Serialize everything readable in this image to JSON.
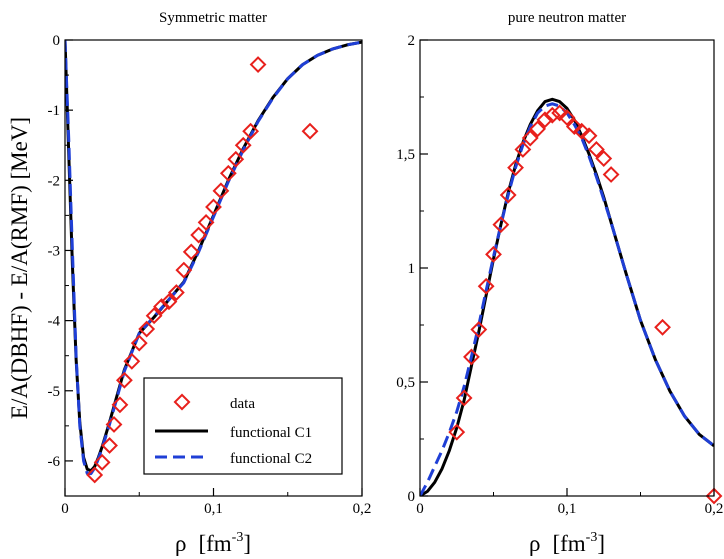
{
  "ylabel": "E/A(DBHF) - E/A(RMF)   [MeV]",
  "chart_data": [
    {
      "type": "line",
      "title": "Symmetric matter",
      "xlabel_symbol": "ρ",
      "xlabel_unit": "[fm",
      "xlabel_exp": "-3",
      "xlabel_close": "]",
      "xlim": [
        0,
        0.2
      ],
      "ylim": [
        -6.5,
        0
      ],
      "xticks": [
        {
          "value": 0,
          "label": "0"
        },
        {
          "value": 0.1,
          "label": "0,1"
        },
        {
          "value": 0.2,
          "label": "0,2"
        }
      ],
      "yticks": [
        {
          "value": 0,
          "label": "0"
        },
        {
          "value": -1,
          "label": "-1"
        },
        {
          "value": -2,
          "label": "-2"
        },
        {
          "value": -3,
          "label": "-3"
        },
        {
          "value": -4,
          "label": "-4"
        },
        {
          "value": -5,
          "label": "-5"
        },
        {
          "value": -6,
          "label": "-6"
        }
      ],
      "data_points": {
        "name": "data",
        "x": [
          0.02,
          0.025,
          0.03,
          0.033,
          0.037,
          0.04,
          0.045,
          0.05,
          0.055,
          0.06,
          0.065,
          0.07,
          0.075,
          0.08,
          0.085,
          0.09,
          0.095,
          0.1,
          0.105,
          0.11,
          0.115,
          0.12,
          0.125,
          0.13,
          0.165
        ],
        "y": [
          -6.2,
          -6.02,
          -5.78,
          -5.48,
          -5.2,
          -4.85,
          -4.58,
          -4.32,
          -4.12,
          -3.93,
          -3.8,
          -3.73,
          -3.6,
          -3.28,
          -3.02,
          -2.78,
          -2.6,
          -2.38,
          -2.15,
          -1.9,
          -1.7,
          -1.5,
          -1.3,
          -0.35,
          -1.3
        ]
      },
      "series": [
        {
          "name": "functional C1",
          "color": "#000000",
          "dash": "solid",
          "x": [
            0,
            0.0025,
            0.005,
            0.0075,
            0.01,
            0.0125,
            0.015,
            0.0175,
            0.02,
            0.0225,
            0.025,
            0.03,
            0.035,
            0.04,
            0.05,
            0.06,
            0.07,
            0.08,
            0.09,
            0.1,
            0.11,
            0.12,
            0.13,
            0.14,
            0.15,
            0.16,
            0.17,
            0.18,
            0.19,
            0.2
          ],
          "y": [
            0,
            -1.6,
            -3.2,
            -4.55,
            -5.45,
            -5.95,
            -6.12,
            -6.14,
            -6.08,
            -5.95,
            -5.8,
            -5.45,
            -5.07,
            -4.7,
            -4.18,
            -3.95,
            -3.7,
            -3.45,
            -3.0,
            -2.5,
            -2.0,
            -1.55,
            -1.15,
            -0.82,
            -0.55,
            -0.35,
            -0.22,
            -0.13,
            -0.07,
            -0.03
          ]
        },
        {
          "name": "functional C2",
          "color": "#1f3fd6",
          "dash": "dashed",
          "x": [
            0,
            0.0025,
            0.005,
            0.0075,
            0.01,
            0.0125,
            0.015,
            0.0175,
            0.02,
            0.0225,
            0.025,
            0.03,
            0.035,
            0.04,
            0.05,
            0.06,
            0.07,
            0.08,
            0.09,
            0.1,
            0.11,
            0.12,
            0.13,
            0.14,
            0.15,
            0.16,
            0.17,
            0.18,
            0.19,
            0.2
          ],
          "y": [
            0,
            -1.4,
            -3.0,
            -4.5,
            -5.5,
            -6.0,
            -6.18,
            -6.18,
            -6.1,
            -5.97,
            -5.82,
            -5.48,
            -5.1,
            -4.72,
            -4.18,
            -3.94,
            -3.7,
            -3.46,
            -3.02,
            -2.52,
            -2.02,
            -1.57,
            -1.16,
            -0.83,
            -0.55,
            -0.35,
            -0.22,
            -0.13,
            -0.07,
            -0.03
          ]
        }
      ],
      "legend": {
        "placement": "bottom-right",
        "entries": [
          "data",
          "functional C1",
          "functional C2"
        ]
      }
    },
    {
      "type": "line",
      "title": "pure neutron matter",
      "xlabel_symbol": "ρ",
      "xlabel_unit": "[fm",
      "xlabel_exp": "-3",
      "xlabel_close": "]",
      "xlim": [
        0,
        0.2
      ],
      "ylim": [
        0,
        2
      ],
      "xticks": [
        {
          "value": 0,
          "label": "0"
        },
        {
          "value": 0.1,
          "label": "0,1"
        },
        {
          "value": 0.2,
          "label": "0,2"
        }
      ],
      "yticks": [
        {
          "value": 0,
          "label": "0"
        },
        {
          "value": 0.5,
          "label": "0,5"
        },
        {
          "value": 1,
          "label": "1"
        },
        {
          "value": 1.5,
          "label": "1,5"
        },
        {
          "value": 2,
          "label": "2"
        }
      ],
      "data_points": {
        "name": "data",
        "x": [
          0.025,
          0.03,
          0.035,
          0.04,
          0.045,
          0.05,
          0.055,
          0.06,
          0.065,
          0.07,
          0.075,
          0.08,
          0.085,
          0.09,
          0.095,
          0.1,
          0.105,
          0.11,
          0.115,
          0.12,
          0.125,
          0.13,
          0.165,
          0.2
        ],
        "y": [
          0.28,
          0.43,
          0.61,
          0.73,
          0.92,
          1.06,
          1.19,
          1.32,
          1.44,
          1.52,
          1.57,
          1.61,
          1.65,
          1.67,
          1.68,
          1.66,
          1.62,
          1.6,
          1.58,
          1.52,
          1.48,
          1.41,
          0.74,
          0.0
        ]
      },
      "series": [
        {
          "name": "functional C1",
          "color": "#000000",
          "dash": "solid",
          "x": [
            0,
            0.005,
            0.01,
            0.015,
            0.02,
            0.025,
            0.03,
            0.035,
            0.04,
            0.045,
            0.05,
            0.055,
            0.06,
            0.065,
            0.07,
            0.075,
            0.08,
            0.085,
            0.09,
            0.095,
            0.1,
            0.105,
            0.11,
            0.115,
            0.12,
            0.125,
            0.13,
            0.14,
            0.15,
            0.16,
            0.17,
            0.18,
            0.19,
            0.2
          ],
          "y": [
            0,
            0.02,
            0.06,
            0.12,
            0.2,
            0.3,
            0.42,
            0.57,
            0.72,
            0.88,
            1.04,
            1.19,
            1.33,
            1.45,
            1.55,
            1.63,
            1.69,
            1.73,
            1.74,
            1.73,
            1.7,
            1.65,
            1.58,
            1.5,
            1.41,
            1.31,
            1.2,
            0.98,
            0.77,
            0.6,
            0.46,
            0.35,
            0.27,
            0.22
          ]
        },
        {
          "name": "functional C2",
          "color": "#1f3fd6",
          "dash": "dashed",
          "x": [
            0,
            0.005,
            0.01,
            0.015,
            0.02,
            0.025,
            0.03,
            0.035,
            0.04,
            0.045,
            0.05,
            0.055,
            0.06,
            0.065,
            0.07,
            0.075,
            0.08,
            0.085,
            0.09,
            0.095,
            0.1,
            0.105,
            0.11,
            0.115,
            0.12,
            0.125,
            0.13,
            0.14,
            0.15,
            0.16,
            0.17,
            0.18,
            0.19,
            0.2
          ],
          "y": [
            0,
            0.06,
            0.13,
            0.2,
            0.28,
            0.37,
            0.48,
            0.61,
            0.75,
            0.9,
            1.05,
            1.19,
            1.32,
            1.44,
            1.54,
            1.62,
            1.68,
            1.71,
            1.72,
            1.71,
            1.68,
            1.63,
            1.57,
            1.49,
            1.4,
            1.3,
            1.2,
            0.98,
            0.77,
            0.6,
            0.46,
            0.35,
            0.27,
            0.22
          ]
        }
      ]
    }
  ]
}
